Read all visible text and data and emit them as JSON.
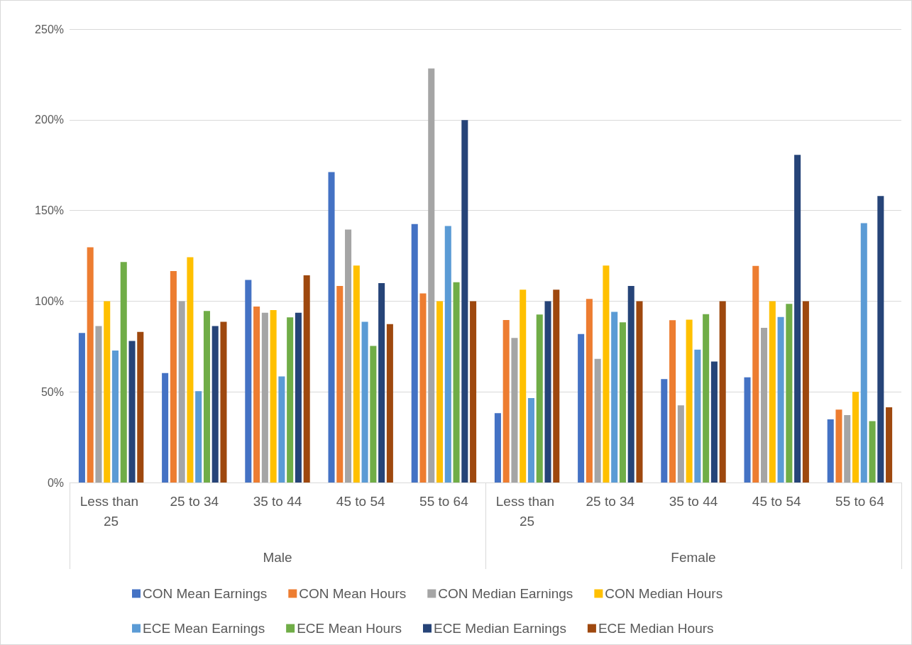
{
  "chart_data": {
    "type": "bar",
    "categories": [
      "Less than 25",
      "25 to 34",
      "35 to 44",
      "45 to 54",
      "55 to 64",
      "Less than 25",
      "25 to 34",
      "35 to 44",
      "45 to 54",
      "55 to 64"
    ],
    "annotations": [
      "Male",
      "Female"
    ],
    "series": [
      {
        "name": "CON Mean Earnings",
        "color": "#4472c4",
        "values": [
          82.5,
          60.3,
          111.7,
          171.2,
          142.5,
          38.2,
          81.9,
          57,
          58,
          34.8
        ]
      },
      {
        "name": "CON Mean Hours",
        "color": "#ed7d31",
        "values": [
          129.7,
          116.6,
          97,
          108.4,
          104.3,
          89.6,
          101.2,
          89.5,
          119.4,
          40.2
        ]
      },
      {
        "name": "CON Median Earnings",
        "color": "#a5a5a5",
        "values": [
          86.3,
          100,
          93.6,
          139.5,
          228.3,
          79.7,
          68.2,
          42.5,
          85.3,
          37.2
        ]
      },
      {
        "name": "CON Median Hours",
        "color": "#ffc000",
        "values": [
          100,
          124.2,
          95.1,
          119.6,
          100,
          106.3,
          119.6,
          89.8,
          100,
          50
        ]
      },
      {
        "name": "ECE Mean Earnings",
        "color": "#5b9bd5",
        "values": [
          72.8,
          50.4,
          58.5,
          88.6,
          141.4,
          46.6,
          94.1,
          73.3,
          91.3,
          143
        ]
      },
      {
        "name": "ECE Mean Hours",
        "color": "#70ad47",
        "values": [
          121.6,
          94.6,
          91.1,
          75.3,
          110.4,
          92.6,
          88.3,
          92.8,
          98.5,
          33.8
        ]
      },
      {
        "name": "ECE Median Earnings",
        "color": "#264478",
        "values": [
          78.1,
          86.3,
          93.6,
          109.9,
          199.8,
          100,
          108.4,
          66.7,
          180.7,
          158
        ]
      },
      {
        "name": "ECE Median Hours",
        "color": "#9e480e",
        "values": [
          83,
          88.6,
          114.2,
          87.3,
          100,
          106.3,
          100,
          100,
          100,
          41.5
        ]
      }
    ],
    "ylim": [
      0,
      250
    ],
    "yticks": [
      {
        "value": 0,
        "label": "0%"
      },
      {
        "value": 50,
        "label": "50%"
      },
      {
        "value": 100,
        "label": "100%"
      },
      {
        "value": 150,
        "label": "150%"
      },
      {
        "value": 200,
        "label": "200%"
      },
      {
        "value": 250,
        "label": "250%"
      }
    ],
    "grid": "y",
    "legend": "bottom"
  }
}
